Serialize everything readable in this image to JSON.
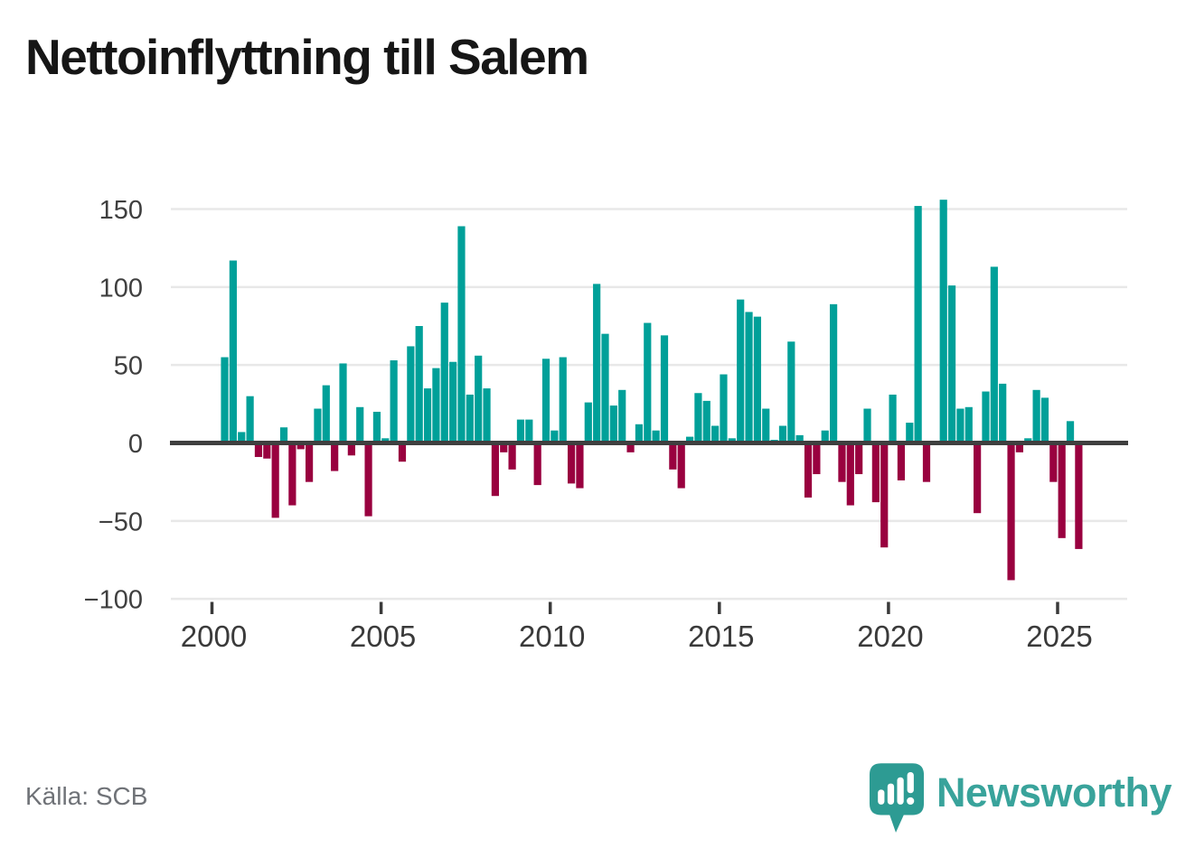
{
  "title": "Nettoinflyttning till Salem",
  "source": "Källa: SCB",
  "branding": {
    "name": "Newsworthy",
    "icon": "newsworthy-speech-bubble-bar-chart-icon",
    "text_color": "#39a39b",
    "icon_color": "#2d9b93"
  },
  "chart_data": {
    "type": "bar",
    "title": "Nettoinflyttning till Salem",
    "xlabel": "",
    "ylabel": "",
    "x_axis": "quarters from 2000-Q2 to 2025-Q3",
    "x_ticks": [
      "2000",
      "2005",
      "2010",
      "2015",
      "2020",
      "2025"
    ],
    "y_ticks": [
      {
        "v": 150,
        "label": "150"
      },
      {
        "v": 100,
        "label": "100"
      },
      {
        "v": 50,
        "label": "50"
      },
      {
        "v": 0,
        "label": "0"
      },
      {
        "v": -50,
        "label": "−50"
      },
      {
        "v": -100,
        "label": "−100"
      }
    ],
    "ylim": [
      -100,
      156
    ],
    "grid": "horizontal",
    "legend": "none",
    "positive_color": "#00a099",
    "negative_color": "#99013f",
    "zero_line_color": "#3f3f3f",
    "points": [
      [
        "2000-Q2",
        55
      ],
      [
        "2000-Q3",
        117
      ],
      [
        "2000-Q4",
        7
      ],
      [
        "2001-Q1",
        30
      ],
      [
        "2001-Q2",
        -9
      ],
      [
        "2001-Q3",
        -10
      ],
      [
        "2001-Q4",
        -48
      ],
      [
        "2002-Q1",
        10
      ],
      [
        "2002-Q2",
        -40
      ],
      [
        "2002-Q3",
        -4
      ],
      [
        "2002-Q4",
        -25
      ],
      [
        "2003-Q1",
        22
      ],
      [
        "2003-Q2",
        37
      ],
      [
        "2003-Q3",
        -18
      ],
      [
        "2003-Q4",
        51
      ],
      [
        "2004-Q1",
        -8
      ],
      [
        "2004-Q2",
        23
      ],
      [
        "2004-Q3",
        -47
      ],
      [
        "2004-Q4",
        20
      ],
      [
        "2005-Q1",
        3
      ],
      [
        "2005-Q2",
        53
      ],
      [
        "2005-Q3",
        -12
      ],
      [
        "2005-Q4",
        62
      ],
      [
        "2006-Q1",
        75
      ],
      [
        "2006-Q2",
        35
      ],
      [
        "2006-Q3",
        48
      ],
      [
        "2006-Q4",
        90
      ],
      [
        "2007-Q1",
        52
      ],
      [
        "2007-Q2",
        139
      ],
      [
        "2007-Q3",
        31
      ],
      [
        "2007-Q4",
        56
      ],
      [
        "2008-Q1",
        35
      ],
      [
        "2008-Q2",
        -34
      ],
      [
        "2008-Q3",
        -6
      ],
      [
        "2008-Q4",
        -17
      ],
      [
        "2009-Q1",
        15
      ],
      [
        "2009-Q2",
        15
      ],
      [
        "2009-Q3",
        -27
      ],
      [
        "2009-Q4",
        54
      ],
      [
        "2010-Q1",
        8
      ],
      [
        "2010-Q2",
        55
      ],
      [
        "2010-Q3",
        -26
      ],
      [
        "2010-Q4",
        -29
      ],
      [
        "2011-Q1",
        26
      ],
      [
        "2011-Q2",
        102
      ],
      [
        "2011-Q3",
        70
      ],
      [
        "2011-Q4",
        24
      ],
      [
        "2012-Q1",
        34
      ],
      [
        "2012-Q2",
        -6
      ],
      [
        "2012-Q3",
        12
      ],
      [
        "2012-Q4",
        77
      ],
      [
        "2013-Q1",
        8
      ],
      [
        "2013-Q2",
        69
      ],
      [
        "2013-Q3",
        -17
      ],
      [
        "2013-Q4",
        -29
      ],
      [
        "2014-Q1",
        4
      ],
      [
        "2014-Q2",
        32
      ],
      [
        "2014-Q3",
        27
      ],
      [
        "2014-Q4",
        11
      ],
      [
        "2015-Q1",
        44
      ],
      [
        "2015-Q2",
        3
      ],
      [
        "2015-Q3",
        92
      ],
      [
        "2015-Q4",
        84
      ],
      [
        "2016-Q1",
        81
      ],
      [
        "2016-Q2",
        22
      ],
      [
        "2016-Q3",
        2
      ],
      [
        "2016-Q4",
        11
      ],
      [
        "2017-Q1",
        65
      ],
      [
        "2017-Q2",
        5
      ],
      [
        "2017-Q3",
        -35
      ],
      [
        "2017-Q4",
        -20
      ],
      [
        "2018-Q1",
        8
      ],
      [
        "2018-Q2",
        89
      ],
      [
        "2018-Q3",
        -25
      ],
      [
        "2018-Q4",
        -40
      ],
      [
        "2019-Q1",
        -20
      ],
      [
        "2019-Q2",
        22
      ],
      [
        "2019-Q3",
        -38
      ],
      [
        "2019-Q4",
        -67
      ],
      [
        "2020-Q1",
        31
      ],
      [
        "2020-Q2",
        -24
      ],
      [
        "2020-Q3",
        13
      ],
      [
        "2020-Q4",
        152
      ],
      [
        "2021-Q1",
        -25
      ],
      [
        "2021-Q2",
        0
      ],
      [
        "2021-Q3",
        156
      ],
      [
        "2021-Q4",
        101
      ],
      [
        "2022-Q1",
        22
      ],
      [
        "2022-Q2",
        23
      ],
      [
        "2022-Q3",
        -45
      ],
      [
        "2022-Q4",
        33
      ],
      [
        "2023-Q1",
        113
      ],
      [
        "2023-Q2",
        38
      ],
      [
        "2023-Q3",
        -88
      ],
      [
        "2023-Q4",
        -6
      ],
      [
        "2024-Q1",
        3
      ],
      [
        "2024-Q2",
        34
      ],
      [
        "2024-Q3",
        29
      ],
      [
        "2024-Q4",
        -25
      ],
      [
        "2025-Q1",
        -61
      ],
      [
        "2025-Q2",
        14
      ],
      [
        "2025-Q3",
        -68
      ]
    ]
  }
}
